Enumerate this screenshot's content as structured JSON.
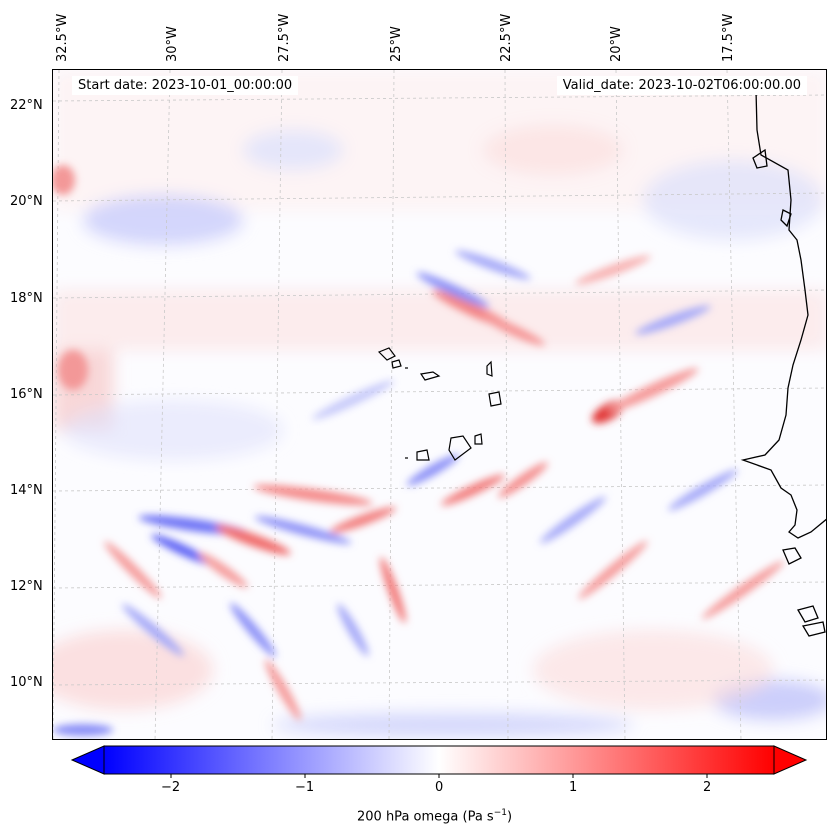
{
  "lon_labels": [
    "32.5°W",
    "30°W",
    "27.5°W",
    "25°W",
    "22.5°W",
    "20°W",
    "17.5°W"
  ],
  "lat_labels": [
    "22°N",
    "20°N",
    "18°N",
    "16°N",
    "14°N",
    "12°N",
    "10°N"
  ],
  "start_date": "Start date: 2023-10-01_00:00:00",
  "valid_date": "Valid_date: 2023-10-02T06:00:00.00",
  "colorbar": {
    "ticks": [
      "−2",
      "−1",
      "0",
      "1",
      "2"
    ],
    "label": "200 hPa omega (Pa s",
    "label_sup": "−1",
    "label_end": ")",
    "min_color": "#0000ff",
    "mid_color": "#ffffff",
    "max_color": "#ff0000"
  }
}
